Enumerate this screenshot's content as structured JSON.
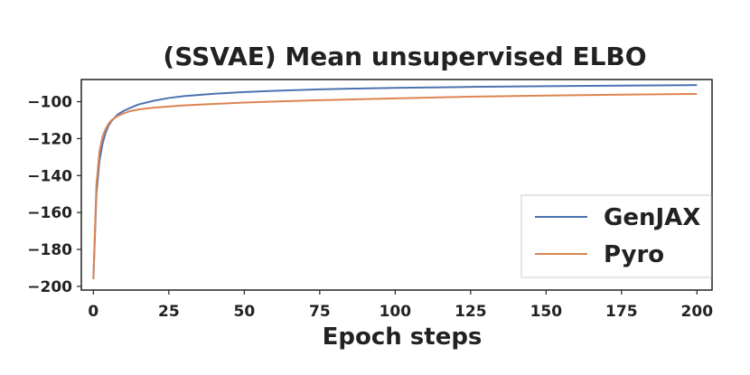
{
  "chart_data": {
    "type": "line",
    "title": "(SSVAE) Mean unsupervised ELBO",
    "xlabel": "Epoch steps",
    "ylabel": "",
    "xlim": [
      -4,
      205
    ],
    "ylim": [
      -202,
      -88
    ],
    "x_ticks": [
      0,
      25,
      50,
      75,
      100,
      125,
      150,
      175,
      200
    ],
    "y_ticks": [
      -100,
      -120,
      -140,
      -160,
      -180,
      -200
    ],
    "grid": false,
    "legend_position": "center-right",
    "series": [
      {
        "name": "GenJAX",
        "color": "#4c72b0",
        "x": [
          0,
          1,
          2,
          3,
          4,
          5,
          6,
          8,
          10,
          12,
          15,
          20,
          25,
          30,
          40,
          50,
          60,
          75,
          100,
          125,
          150,
          175,
          200
        ],
        "y": [
          -196,
          -150,
          -132,
          -123,
          -117,
          -113,
          -110.5,
          -107,
          -105,
          -103.5,
          -101.5,
          -99.5,
          -98,
          -97,
          -95.7,
          -94.8,
          -94.1,
          -93.3,
          -92.5,
          -92,
          -91.6,
          -91.3,
          -91
        ]
      },
      {
        "name": "Pyro",
        "color": "#dd8452",
        "x": [
          0,
          1,
          2,
          3,
          4,
          5,
          6,
          8,
          10,
          12,
          15,
          20,
          25,
          30,
          40,
          50,
          60,
          75,
          100,
          125,
          150,
          175,
          200
        ],
        "y": [
          -196,
          -145,
          -127,
          -119,
          -115,
          -112,
          -110,
          -107.8,
          -106.3,
          -105.2,
          -104.2,
          -103.2,
          -102.6,
          -102,
          -101.2,
          -100.5,
          -99.9,
          -99.2,
          -98.2,
          -97.3,
          -96.7,
          -96.2,
          -95.8
        ]
      }
    ]
  }
}
